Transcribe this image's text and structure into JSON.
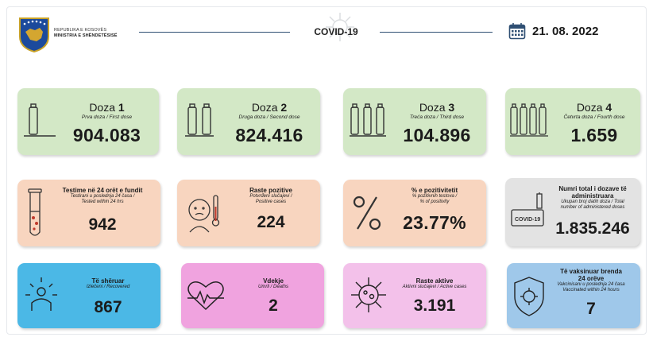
{
  "header": {
    "org_line1": "REPUBLIKA E KOSOVËS",
    "org_line2": "MINISTRIA E SHËNDETËSISË",
    "title": "COVID-19",
    "date": "21. 08. 2022",
    "icons": {
      "logo": "kosovo-emblem",
      "calendar": "calendar-icon",
      "virus": "virus-icon"
    }
  },
  "colors": {
    "green": "#d3e8c6",
    "peach": "#f8d5bf",
    "grey": "#e3e3e3",
    "blue": "#4bb8e6",
    "pink": "#f0a3df",
    "light_pink": "#f3c1ea",
    "light_blue": "#9fc8ea",
    "line": "#2f4f73"
  },
  "doses": [
    {
      "label": "Doza",
      "num": "1",
      "sub": "Prva doza / First dose",
      "value": "904.083",
      "icon": "vial-icon"
    },
    {
      "label": "Doza",
      "num": "2",
      "sub": "Druga doza / Second dose",
      "value": "824.416",
      "icon": "vials-2-icon"
    },
    {
      "label": "Doza",
      "num": "3",
      "sub": "Treća doza / Third dose",
      "value": "104.896",
      "icon": "vials-3-icon"
    },
    {
      "label": "Doza",
      "num": "4",
      "sub": "Četvrta doza / Fourth dose",
      "value": "1.659",
      "icon": "vials-4-icon"
    }
  ],
  "stats_row2": [
    {
      "title": "Testime në 24 orët e fundit",
      "sub1": "Testirani u poslednja 24 časa /",
      "sub2": "Tested within 24 hrs",
      "value": "942",
      "icon": "test-tube-icon"
    },
    {
      "title": "Raste pozitive",
      "sub1": "Potvrđeni slučajevi /",
      "sub2": "Positive cases",
      "value": "224",
      "icon": "sick-person-icon"
    },
    {
      "title": "% e pozitivitetit",
      "sub1": "% pozitivnih testova /",
      "sub2": "% of positivity",
      "value": "23.77%",
      "icon": "percent-icon"
    },
    {
      "title1": "Numri total i dozave të",
      "title2": "administruara",
      "sub1": "Ukupan broj datih doza / Total",
      "sub2": "number of administered doses",
      "value": "1.835.246",
      "icon": "covid-certificate-icon"
    }
  ],
  "stats_row3": [
    {
      "title": "Të shëruar",
      "sub1": "Izlečeni / Recovered",
      "value": "867",
      "icon": "recovered-person-icon"
    },
    {
      "title": "Vdekje",
      "sub1": "Umrli / Deaths",
      "value": "2",
      "icon": "heartbeat-icon"
    },
    {
      "title": "Raste aktive",
      "sub1": "Aktivni slučajevi / Active cases",
      "value": "3.191",
      "icon": "virus-icon"
    },
    {
      "title1": "Të vaksinuar brenda",
      "title2": "24 orëve",
      "sub1": "Vakcinisani u poslednja 24 časa",
      "sub2": "Vaccinated within 24 hours",
      "value": "7",
      "icon": "shield-virus-icon"
    }
  ]
}
